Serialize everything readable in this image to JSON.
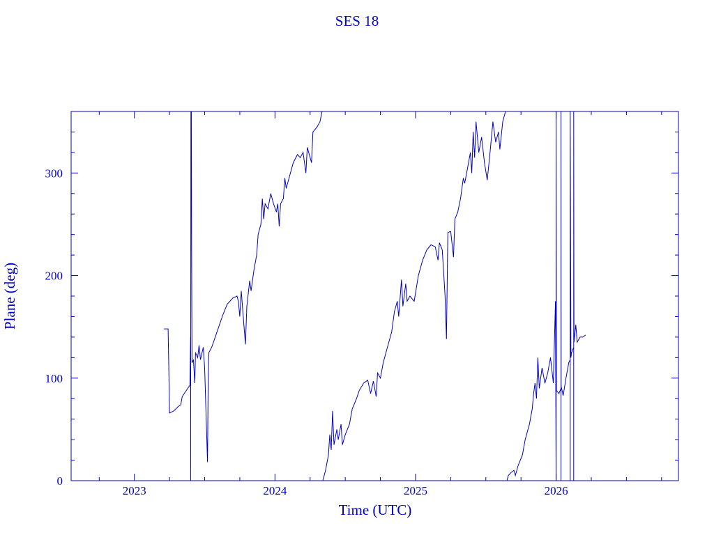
{
  "chart_data": {
    "type": "line",
    "title": "SES 18",
    "xlabel": "Time (UTC)",
    "ylabel": "Plane (deg)",
    "xlim": [
      2022.55,
      2026.87
    ],
    "ylim": [
      0,
      360
    ],
    "x_ticks": [
      2023,
      2024,
      2025,
      2026
    ],
    "x_tick_labels": [
      "2023",
      "2024",
      "2025",
      "2026"
    ],
    "y_ticks": [
      0,
      100,
      200,
      300
    ],
    "y_tick_labels": [
      "0",
      "100",
      "200",
      "300"
    ],
    "grid": false,
    "color": "#0000c8",
    "series": [
      {
        "points": [
          [
            2023.21,
            148
          ],
          [
            2023.24,
            148
          ],
          [
            2023.245,
            110
          ],
          [
            2023.25,
            66
          ],
          [
            2023.28,
            68
          ],
          [
            2023.31,
            72
          ],
          [
            2023.33,
            74
          ],
          [
            2023.34,
            82
          ],
          [
            2023.36,
            86
          ],
          [
            2023.38,
            90
          ],
          [
            2023.395,
            93
          ],
          [
            2023.4,
            140
          ],
          [
            2023.4,
            0
          ],
          [
            2023.402,
            360
          ],
          [
            2023.403,
            325
          ],
          [
            2023.405,
            360
          ],
          [
            2023.407,
            230
          ],
          [
            2023.41,
            115
          ],
          [
            2023.42,
            118
          ],
          [
            2023.43,
            95
          ],
          [
            2023.435,
            125
          ],
          [
            2023.45,
            120
          ],
          [
            2023.46,
            132
          ],
          [
            2023.47,
            118
          ],
          [
            2023.49,
            130
          ],
          [
            2023.5,
            110
          ],
          [
            2023.52,
            18
          ],
          [
            2023.525,
            100
          ],
          [
            2023.53,
            125
          ],
          [
            2023.55,
            130
          ],
          [
            2023.57,
            138
          ],
          [
            2023.6,
            150
          ],
          [
            2023.63,
            162
          ],
          [
            2023.66,
            172
          ],
          [
            2023.7,
            178
          ],
          [
            2023.73,
            180
          ],
          [
            2023.74,
            175
          ],
          [
            2023.75,
            160
          ],
          [
            2023.76,
            185
          ],
          [
            2023.78,
            150
          ],
          [
            2023.79,
            133
          ],
          [
            2023.8,
            170
          ],
          [
            2023.82,
            195
          ],
          [
            2023.83,
            185
          ],
          [
            2023.85,
            205
          ],
          [
            2023.87,
            220
          ],
          [
            2023.88,
            240
          ],
          [
            2023.9,
            250
          ],
          [
            2023.91,
            275
          ],
          [
            2023.92,
            255
          ],
          [
            2023.93,
            270
          ],
          [
            2023.95,
            265
          ],
          [
            2023.97,
            280
          ],
          [
            2023.99,
            270
          ],
          [
            2024.01,
            262
          ],
          [
            2024.02,
            270
          ],
          [
            2024.03,
            248
          ],
          [
            2024.04,
            270
          ],
          [
            2024.06,
            275
          ],
          [
            2024.07,
            295
          ],
          [
            2024.08,
            285
          ],
          [
            2024.1,
            295
          ],
          [
            2024.13,
            310
          ],
          [
            2024.16,
            318
          ],
          [
            2024.18,
            315
          ],
          [
            2024.2,
            320
          ],
          [
            2024.22,
            300
          ],
          [
            2024.23,
            325
          ],
          [
            2024.26,
            310
          ],
          [
            2024.27,
            340
          ],
          [
            2024.3,
            345
          ],
          [
            2024.32,
            350
          ],
          [
            2024.335,
            360
          ]
        ]
      },
      {
        "points": [
          [
            2024.34,
            0
          ],
          [
            2024.36,
            10
          ],
          [
            2024.38,
            25
          ],
          [
            2024.39,
            45
          ],
          [
            2024.4,
            30
          ],
          [
            2024.41,
            68
          ],
          [
            2024.42,
            35
          ],
          [
            2024.44,
            50
          ],
          [
            2024.45,
            40
          ],
          [
            2024.47,
            55
          ],
          [
            2024.48,
            35
          ],
          [
            2024.5,
            45
          ],
          [
            2024.53,
            55
          ],
          [
            2024.55,
            70
          ],
          [
            2024.58,
            80
          ],
          [
            2024.6,
            88
          ],
          [
            2024.63,
            95
          ],
          [
            2024.66,
            98
          ],
          [
            2024.68,
            85
          ],
          [
            2024.7,
            97
          ],
          [
            2024.72,
            82
          ],
          [
            2024.73,
            105
          ],
          [
            2024.75,
            100
          ],
          [
            2024.77,
            115
          ],
          [
            2024.8,
            130
          ],
          [
            2024.83,
            145
          ],
          [
            2024.85,
            165
          ],
          [
            2024.87,
            175
          ],
          [
            2024.88,
            160
          ],
          [
            2024.9,
            196
          ],
          [
            2024.91,
            170
          ],
          [
            2024.93,
            192
          ],
          [
            2024.94,
            175
          ],
          [
            2024.96,
            180
          ],
          [
            2024.99,
            175
          ],
          [
            2025.02,
            200
          ],
          [
            2025.05,
            215
          ],
          [
            2025.08,
            225
          ],
          [
            2025.11,
            230
          ],
          [
            2025.14,
            228
          ],
          [
            2025.16,
            215
          ],
          [
            2025.17,
            232
          ],
          [
            2025.19,
            225
          ],
          [
            2025.21,
            180
          ],
          [
            2025.22,
            138
          ],
          [
            2025.23,
            242
          ],
          [
            2025.25,
            243
          ],
          [
            2025.27,
            218
          ],
          [
            2025.28,
            255
          ],
          [
            2025.3,
            262
          ],
          [
            2025.32,
            275
          ],
          [
            2025.34,
            295
          ],
          [
            2025.35,
            290
          ],
          [
            2025.37,
            305
          ],
          [
            2025.39,
            320
          ],
          [
            2025.4,
            300
          ],
          [
            2025.41,
            340
          ],
          [
            2025.42,
            315
          ],
          [
            2025.43,
            350
          ],
          [
            2025.45,
            320
          ],
          [
            2025.47,
            335
          ],
          [
            2025.49,
            310
          ],
          [
            2025.51,
            293
          ],
          [
            2025.53,
            320
          ],
          [
            2025.55,
            350
          ],
          [
            2025.57,
            330
          ],
          [
            2025.59,
            340
          ],
          [
            2025.6,
            323
          ],
          [
            2025.62,
            350
          ],
          [
            2025.64,
            360
          ]
        ]
      },
      {
        "points": [
          [
            2025.65,
            0
          ],
          [
            2025.66,
            5
          ],
          [
            2025.68,
            8
          ],
          [
            2025.7,
            10
          ],
          [
            2025.71,
            5
          ],
          [
            2025.73,
            15
          ],
          [
            2025.76,
            25
          ],
          [
            2025.78,
            40
          ],
          [
            2025.81,
            55
          ],
          [
            2025.83,
            70
          ],
          [
            2025.84,
            85
          ],
          [
            2025.85,
            95
          ],
          [
            2025.86,
            80
          ],
          [
            2025.87,
            120
          ],
          [
            2025.88,
            90
          ],
          [
            2025.9,
            110
          ],
          [
            2025.92,
            95
          ],
          [
            2025.94,
            105
          ],
          [
            2025.96,
            120
          ],
          [
            2025.98,
            95
          ],
          [
            2025.995,
            175
          ],
          [
            2026.0,
            0
          ],
          [
            2026.0,
            360
          ],
          [
            2026.002,
            88
          ],
          [
            2026.02,
            85
          ],
          [
            2026.035,
            90
          ],
          [
            2026.035,
            0
          ],
          [
            2026.035,
            360
          ],
          [
            2026.036,
            92
          ],
          [
            2026.05,
            83
          ],
          [
            2026.07,
            100
          ],
          [
            2026.09,
            115
          ],
          [
            2026.1,
            118
          ],
          [
            2026.1,
            0
          ],
          [
            2026.1,
            360
          ],
          [
            2026.105,
            120
          ],
          [
            2026.11,
            125
          ],
          [
            2026.125,
            130
          ],
          [
            2026.125,
            0
          ],
          [
            2026.125,
            360
          ],
          [
            2026.127,
            135
          ],
          [
            2026.14,
            152
          ],
          [
            2026.15,
            135
          ],
          [
            2026.17,
            140
          ],
          [
            2026.19,
            140
          ],
          [
            2026.21,
            142
          ]
        ]
      }
    ]
  }
}
